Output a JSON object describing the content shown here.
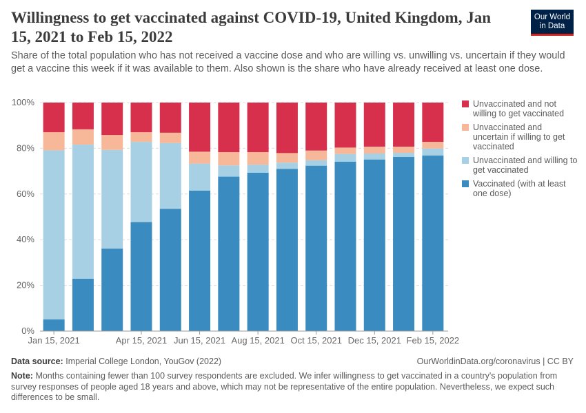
{
  "title": "Willingness to get vaccinated against COVID-19, United Kingdom, Jan 15, 2021 to Feb 15, 2022",
  "subtitle": "Share of the total population who has not received a vaccine dose and who are willing vs. unwilling vs. uncertain if they would get a vaccine this week if it was available to them. Also shown is the share who have already received at least one dose.",
  "logo": "Our World in Data",
  "footer": {
    "source_label": "Data source:",
    "source": "Imperial College London, YouGov (2022)",
    "url": "OurWorldinData.org/coronavirus | CC BY",
    "note_label": "Note:",
    "note": "Months containing fewer than 100 survey respondents are excluded. We infer willingness to get vaccinated in a country's population from survey responses of people aged 18 years and above, which may not be representative of the entire population. Nevertheless, we expect such differences to be small."
  },
  "chart_data": {
    "type": "bar",
    "stacked": true,
    "categories": [
      "Jan 15, 2021",
      "Feb 15, 2021",
      "Mar 15, 2021",
      "Apr 15, 2021",
      "May 15, 2021",
      "Jun 15, 2021",
      "Jul 15, 2021",
      "Aug 15, 2021",
      "Sep 15, 2021",
      "Oct 15, 2021",
      "Nov 15, 2021",
      "Dec 15, 2021",
      "Jan 15, 2022",
      "Feb 15, 2022"
    ],
    "x_tick_labels": [
      "Jan 15, 2021",
      "",
      "",
      "Apr 15, 2021",
      "",
      "Jun 15, 2021",
      "",
      "Aug 15, 2021",
      "",
      "Oct 15, 2021",
      "",
      "Dec 15, 2021",
      "",
      "Feb 15, 2022"
    ],
    "y_ticks": [
      "0%",
      "20%",
      "40%",
      "60%",
      "80%",
      "100%"
    ],
    "ylim": [
      0,
      100
    ],
    "grid": true,
    "legend_position": "right",
    "series": [
      {
        "name": "Vaccinated (with at least one dose)",
        "color": "#3a8bc0",
        "values": [
          5.1,
          22.9,
          36.1,
          47.7,
          53.5,
          61.5,
          67.6,
          69.3,
          71.0,
          72.4,
          74.1,
          75.1,
          76.2,
          76.8
        ]
      },
      {
        "name": "Unvaccinated and willing to get vaccinated",
        "color": "#a8d0e4",
        "values": [
          74.0,
          58.7,
          43.2,
          35.1,
          28.8,
          11.8,
          4.9,
          3.5,
          2.7,
          2.4,
          3.4,
          2.6,
          1.8,
          3.1
        ]
      },
      {
        "name": "Unvaccinated and uncertain if willing to get vaccinated",
        "color": "#f7b799",
        "values": [
          7.9,
          6.7,
          6.5,
          4.2,
          4.5,
          5.2,
          5.8,
          5.5,
          4.2,
          4.2,
          2.8,
          3.0,
          2.7,
          2.9
        ]
      },
      {
        "name": "Unvaccinated and not willing to get vaccinated",
        "color": "#d6304c",
        "values": [
          13.0,
          11.7,
          14.2,
          13.0,
          13.2,
          21.5,
          21.7,
          21.7,
          22.1,
          21.0,
          19.7,
          19.3,
          19.3,
          17.2
        ]
      }
    ]
  }
}
